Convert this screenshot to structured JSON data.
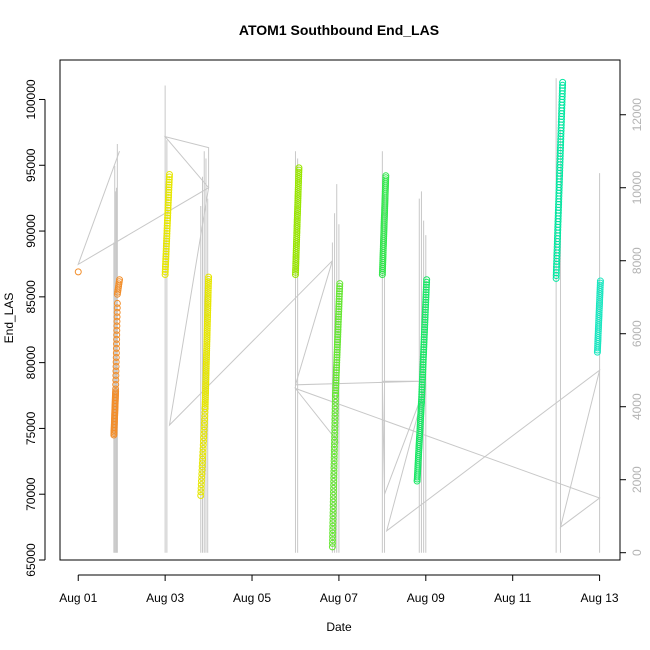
{
  "chart_data": {
    "type": "scatter",
    "title": "ATOM1 Southbound End_LAS",
    "xlabel": "Date",
    "ylabel": "End_LAS",
    "x_ticks": [
      "Aug 01",
      "Aug 03",
      "Aug 05",
      "Aug 07",
      "Aug 09",
      "Aug 11",
      "Aug 13"
    ],
    "x_tick_days": [
      1,
      3,
      5,
      7,
      9,
      11,
      13
    ],
    "xlim": [
      0.58,
      13.47
    ],
    "y_ticks": [
      65000,
      70000,
      75000,
      80000,
      85000,
      90000,
      95000,
      100000
    ],
    "ylim": [
      65000,
      103000
    ],
    "y2_ticks": [
      0,
      2000,
      4000,
      6000,
      8000,
      10000,
      12000
    ],
    "y2lim": [
      -200,
      13500
    ],
    "y2_label": "",
    "grid": false,
    "overlay_line_color": "#c8c8c8",
    "groups": [
      {
        "day_start": 1.0,
        "day_end": 1.0,
        "y_start": 86900,
        "y_end": 86900,
        "count": 1,
        "color": "#f28e2b"
      },
      {
        "day_start": 1.82,
        "day_end": 1.86,
        "y_start": 74500,
        "y_end": 77800,
        "count": 30,
        "color": "#f28e2b"
      },
      {
        "day_start": 1.86,
        "day_end": 1.9,
        "y_start": 78000,
        "y_end": 84500,
        "count": 20,
        "color": "#f28e2b"
      },
      {
        "day_start": 1.9,
        "day_end": 1.95,
        "y_start": 85200,
        "y_end": 86300,
        "count": 8,
        "color": "#f28e2b"
      },
      {
        "day_start": 3.0,
        "day_end": 3.1,
        "y_start": 86700,
        "y_end": 94300,
        "count": 40,
        "color": "#e6e600"
      },
      {
        "day_start": 3.82,
        "day_end": 3.92,
        "y_start": 69900,
        "y_end": 76500,
        "count": 25,
        "color": "#e6e600"
      },
      {
        "day_start": 3.92,
        "day_end": 4.0,
        "y_start": 76500,
        "y_end": 86500,
        "count": 60,
        "color": "#e6e600"
      },
      {
        "day_start": 6.0,
        "day_end": 6.08,
        "y_start": 86700,
        "y_end": 94800,
        "count": 50,
        "color": "#99e600"
      },
      {
        "day_start": 6.85,
        "day_end": 6.92,
        "y_start": 66000,
        "y_end": 77500,
        "count": 45,
        "color": "#66e633"
      },
      {
        "day_start": 6.92,
        "day_end": 7.02,
        "y_start": 77500,
        "y_end": 86000,
        "count": 45,
        "color": "#66e633"
      },
      {
        "day_start": 8.0,
        "day_end": 8.08,
        "y_start": 86700,
        "y_end": 94200,
        "count": 50,
        "color": "#33e64d"
      },
      {
        "day_start": 8.8,
        "day_end": 8.9,
        "y_start": 71000,
        "y_end": 77000,
        "count": 40,
        "color": "#1ae666"
      },
      {
        "day_start": 8.9,
        "day_end": 9.02,
        "y_start": 77000,
        "y_end": 86300,
        "count": 50,
        "color": "#1ae666"
      },
      {
        "day_start": 12.0,
        "day_end": 12.15,
        "y_start": 86400,
        "y_end": 101300,
        "count": 70,
        "color": "#00e6a0"
      },
      {
        "day_start": 12.95,
        "day_end": 13.02,
        "y_start": 80800,
        "y_end": 86200,
        "count": 35,
        "color": "#1ae6c0"
      }
    ],
    "overlay_spikes_day": [
      1.82,
      1.84,
      1.86,
      1.88,
      1.9,
      3.0,
      3.04,
      3.82,
      3.86,
      3.9,
      3.94,
      3.98,
      6.0,
      6.05,
      6.85,
      6.9,
      6.95,
      7.0,
      8.0,
      8.05,
      8.85,
      8.9,
      8.95,
      9.0,
      12.0,
      12.1,
      13.0
    ],
    "overlay_spike_tops": [
      8500,
      10600,
      9900,
      10000,
      11200,
      12800,
      11300,
      9500,
      10300,
      11000,
      10800,
      9700,
      11000,
      10800,
      8500,
      9300,
      10100,
      9000,
      11000,
      9800,
      9700,
      9900,
      9100,
      8700,
      13000,
      11600,
      10400
    ],
    "overlay_path": [
      {
        "day": 1.0,
        "y2": 7900
      },
      {
        "day": 1.95,
        "y2": 11000
      },
      {
        "day": 1.0,
        "y2": 7900
      },
      {
        "day": 4.0,
        "y2": 10000
      },
      {
        "day": 3.0,
        "y2": 11400
      },
      {
        "day": 4.0,
        "y2": 11100
      },
      {
        "day": 4.0,
        "y2": 10000
      },
      {
        "day": 3.1,
        "y2": 3500
      },
      {
        "day": 6.85,
        "y2": 8000
      },
      {
        "day": 6.0,
        "y2": 4600
      },
      {
        "day": 8.9,
        "y2": 4700
      },
      {
        "day": 8.0,
        "y2": 4700
      },
      {
        "day": 8.05,
        "y2": 1600
      },
      {
        "day": 9.0,
        "y2": 4600
      },
      {
        "day": 8.1,
        "y2": 600
      },
      {
        "day": 13.0,
        "y2": 5000
      },
      {
        "day": 12.1,
        "y2": 700
      },
      {
        "day": 13.0,
        "y2": 1500
      },
      {
        "day": 6.0,
        "y2": 4500
      },
      {
        "day": 7.0,
        "y2": 3000
      }
    ]
  }
}
